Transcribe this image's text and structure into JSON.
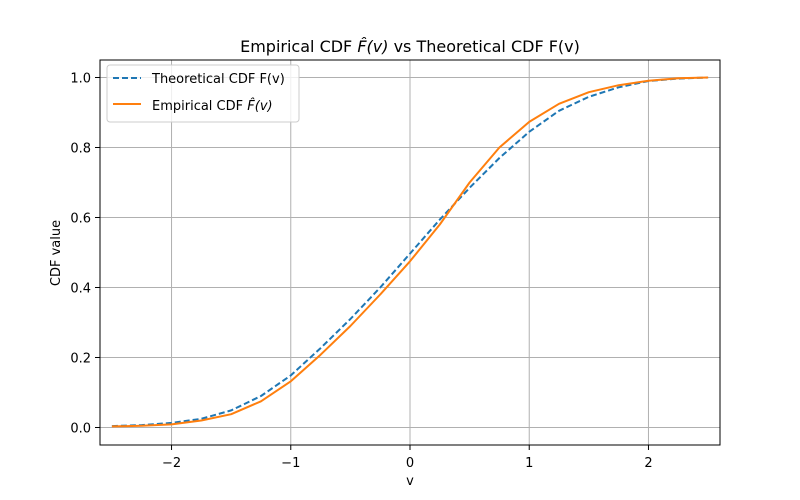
{
  "chart_data": {
    "type": "line",
    "title_prefix": "Empirical CDF ",
    "title_math": "F̂(v)",
    "title_suffix": " vs Theoretical CDF F(v)",
    "xlabel": "v",
    "ylabel": "CDF value",
    "xlim": [
      -2.6,
      2.6
    ],
    "ylim": [
      -0.05,
      1.05
    ],
    "xticks": [
      -2,
      -1,
      0,
      1,
      2
    ],
    "xtick_labels": [
      "−2",
      "−1",
      "0",
      "1",
      "2"
    ],
    "yticks": [
      0.0,
      0.2,
      0.4,
      0.6,
      0.8,
      1.0
    ],
    "ytick_labels": [
      "0.0",
      "0.2",
      "0.4",
      "0.6",
      "0.8",
      "1.0"
    ],
    "grid": true,
    "legend_position": "top-left",
    "series": [
      {
        "name": "Theoretical CDF F(v)",
        "color": "#1f77b4",
        "style": "dashed",
        "x": [
          -2.5,
          -2.25,
          -2.0,
          -1.75,
          -1.5,
          -1.25,
          -1.0,
          -0.75,
          -0.5,
          -0.25,
          0.0,
          0.25,
          0.5,
          0.75,
          1.0,
          1.25,
          1.5,
          1.75,
          2.0,
          2.25,
          2.5
        ],
        "y": [
          0.004,
          0.007,
          0.013,
          0.025,
          0.049,
          0.09,
          0.149,
          0.227,
          0.31,
          0.4,
          0.497,
          0.594,
          0.685,
          0.77,
          0.845,
          0.905,
          0.945,
          0.972,
          0.99,
          0.997,
          1.0
        ]
      },
      {
        "name": "Empirical CDF",
        "legend_math": "F̂(v)",
        "color": "#ff7f0e",
        "style": "solid",
        "x": [
          -2.5,
          -2.25,
          -2.0,
          -1.75,
          -1.5,
          -1.25,
          -1.0,
          -0.75,
          -0.5,
          -0.25,
          0.0,
          0.25,
          0.5,
          0.75,
          1.0,
          1.25,
          1.5,
          1.75,
          2.0,
          2.25,
          2.5
        ],
        "y": [
          0.003,
          0.005,
          0.009,
          0.02,
          0.038,
          0.075,
          0.132,
          0.208,
          0.29,
          0.38,
          0.475,
          0.58,
          0.7,
          0.8,
          0.873,
          0.925,
          0.958,
          0.978,
          0.991,
          0.998,
          1.0
        ]
      }
    ]
  }
}
